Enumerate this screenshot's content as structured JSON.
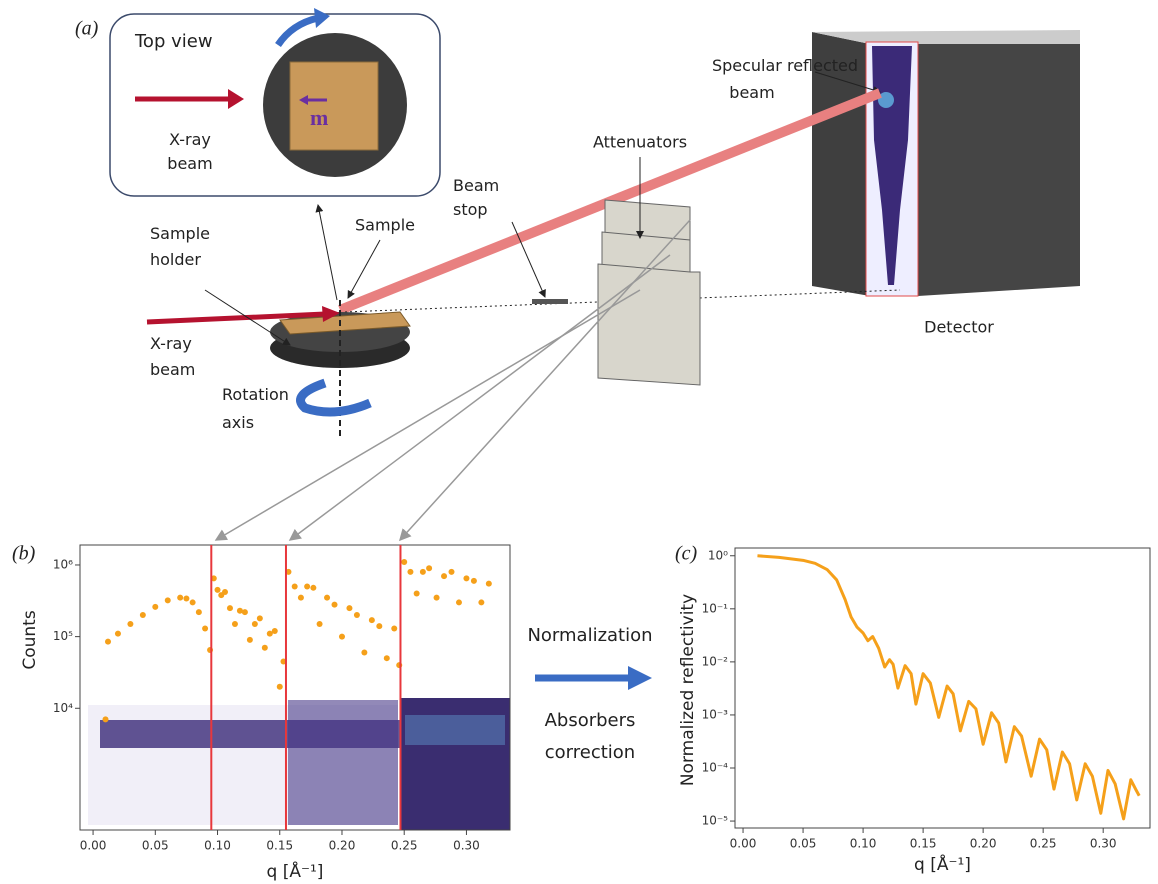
{
  "diagram": {
    "panel_a": "(a)",
    "panel_b": "(b)",
    "panel_c": "(c)",
    "top_view": "Top view",
    "top_xray": [
      "X-ray",
      "beam"
    ],
    "moment": "m",
    "specular": [
      "Specular reflected",
      "beam"
    ],
    "attenuators": "Attenuators",
    "beam_stop": [
      "Beam",
      "stop"
    ],
    "sample": "Sample",
    "sample_holder": [
      "Sample",
      "holder"
    ],
    "xray": [
      "X-ray",
      "beam"
    ],
    "rotation": [
      "Rotation",
      "axis"
    ],
    "detector": "Detector",
    "normalization": "Normalization",
    "absorbers": [
      "Absorbers",
      "correction"
    ]
  },
  "chart_data": [
    {
      "type": "scatter",
      "y_label": "Counts",
      "x_label": "q [Å⁻¹]",
      "color": "#f5a01a",
      "log_y": true,
      "xlim": [
        -0.0105,
        0.335
      ],
      "ylim": [
        200,
        1900000
      ],
      "xticks": [
        {
          "value": 0,
          "label": "0.00"
        },
        {
          "value": 0.05,
          "label": "0.05"
        },
        {
          "value": 0.1,
          "label": "0.10"
        },
        {
          "value": 0.15,
          "label": "0.15"
        },
        {
          "value": 0.2,
          "label": "0.20"
        },
        {
          "value": 0.25,
          "label": "0.25"
        },
        {
          "value": 0.3,
          "label": "0.30"
        }
      ],
      "yticks": [
        {
          "value": 10000,
          "label": "10⁴"
        },
        {
          "value": 100000,
          "label": "10⁵"
        },
        {
          "value": 1000000,
          "label": "10⁶"
        }
      ],
      "absorber_lines": [
        0.095,
        0.155,
        0.247
      ],
      "line_color": "#e8373c",
      "x": [
        0.01,
        0.012,
        0.02,
        0.03,
        0.04,
        0.05,
        0.06,
        0.07,
        0.075,
        0.08,
        0.085,
        0.09,
        0.094,
        0.097,
        0.1,
        0.103,
        0.106,
        0.11,
        0.114,
        0.118,
        0.122,
        0.126,
        0.13,
        0.134,
        0.138,
        0.142,
        0.146,
        0.15,
        0.153,
        0.157,
        0.162,
        0.167,
        0.172,
        0.177,
        0.182,
        0.188,
        0.194,
        0.2,
        0.206,
        0.212,
        0.218,
        0.224,
        0.23,
        0.236,
        0.242,
        0.246,
        0.25,
        0.255,
        0.26,
        0.265,
        0.27,
        0.276,
        0.282,
        0.288,
        0.294,
        0.3,
        0.306,
        0.312,
        0.318
      ],
      "values": [
        7000,
        85000,
        110000,
        150000,
        200000,
        260000,
        320000,
        350000,
        340000,
        300000,
        220000,
        130000,
        65000,
        650000,
        450000,
        380000,
        420000,
        250000,
        150000,
        230000,
        220000,
        90000,
        150000,
        180000,
        70000,
        110000,
        120000,
        20000,
        45000,
        800000,
        500000,
        350000,
        500000,
        480000,
        150000,
        350000,
        280000,
        100000,
        250000,
        200000,
        60000,
        170000,
        140000,
        50000,
        130000,
        40000,
        1100000,
        800000,
        400000,
        800000,
        900000,
        350000,
        700000,
        800000,
        300000,
        650000,
        600000,
        300000,
        550000
      ]
    },
    {
      "type": "line",
      "y_label": "Normalized reflectivity",
      "x_label": "q [Å⁻¹]",
      "color": "#f5a01a",
      "log_y": true,
      "xlim": [
        -0.0067,
        0.339
      ],
      "ylim": [
        7.4e-06,
        1.4
      ],
      "xticks": [
        {
          "value": 0,
          "label": "0.00"
        },
        {
          "value": 0.05,
          "label": "0.05"
        },
        {
          "value": 0.1,
          "label": "0.10"
        },
        {
          "value": 0.15,
          "label": "0.15"
        },
        {
          "value": 0.2,
          "label": "0.20"
        },
        {
          "value": 0.25,
          "label": "0.25"
        },
        {
          "value": 0.3,
          "label": "0.30"
        }
      ],
      "yticks": [
        {
          "value": 1,
          "label": "10⁰"
        },
        {
          "value": 0.1,
          "label": "10⁻¹"
        },
        {
          "value": 0.01,
          "label": "10⁻²"
        },
        {
          "value": 0.001,
          "label": "10⁻³"
        },
        {
          "value": 0.0001,
          "label": "10⁻⁴"
        },
        {
          "value": 1e-05,
          "label": "10⁻⁵"
        }
      ],
      "x": [
        0.012,
        0.03,
        0.05,
        0.06,
        0.07,
        0.078,
        0.085,
        0.09,
        0.095,
        0.1,
        0.104,
        0.108,
        0.113,
        0.118,
        0.122,
        0.125,
        0.129,
        0.135,
        0.14,
        0.144,
        0.15,
        0.156,
        0.163,
        0.17,
        0.175,
        0.181,
        0.188,
        0.194,
        0.2,
        0.207,
        0.213,
        0.219,
        0.226,
        0.232,
        0.24,
        0.247,
        0.253,
        0.259,
        0.266,
        0.272,
        0.278,
        0.285,
        0.291,
        0.298,
        0.304,
        0.31,
        0.317,
        0.323,
        0.327,
        0.33
      ],
      "values": [
        1.0,
        0.93,
        0.82,
        0.72,
        0.55,
        0.35,
        0.15,
        0.07,
        0.045,
        0.035,
        0.025,
        0.03,
        0.018,
        0.008,
        0.011,
        0.009,
        0.0032,
        0.0085,
        0.006,
        0.0016,
        0.006,
        0.004,
        0.0009,
        0.0035,
        0.0025,
        0.0005,
        0.0018,
        0.0013,
        0.00028,
        0.0011,
        0.0007,
        0.00013,
        0.0006,
        0.0004,
        7e-05,
        0.00035,
        0.00022,
        4e-05,
        0.0002,
        0.00012,
        2.5e-05,
        0.00012,
        7e-05,
        1.4e-05,
        9e-05,
        5e-05,
        1.1e-05,
        6e-05,
        4e-05,
        3e-05
      ]
    }
  ]
}
